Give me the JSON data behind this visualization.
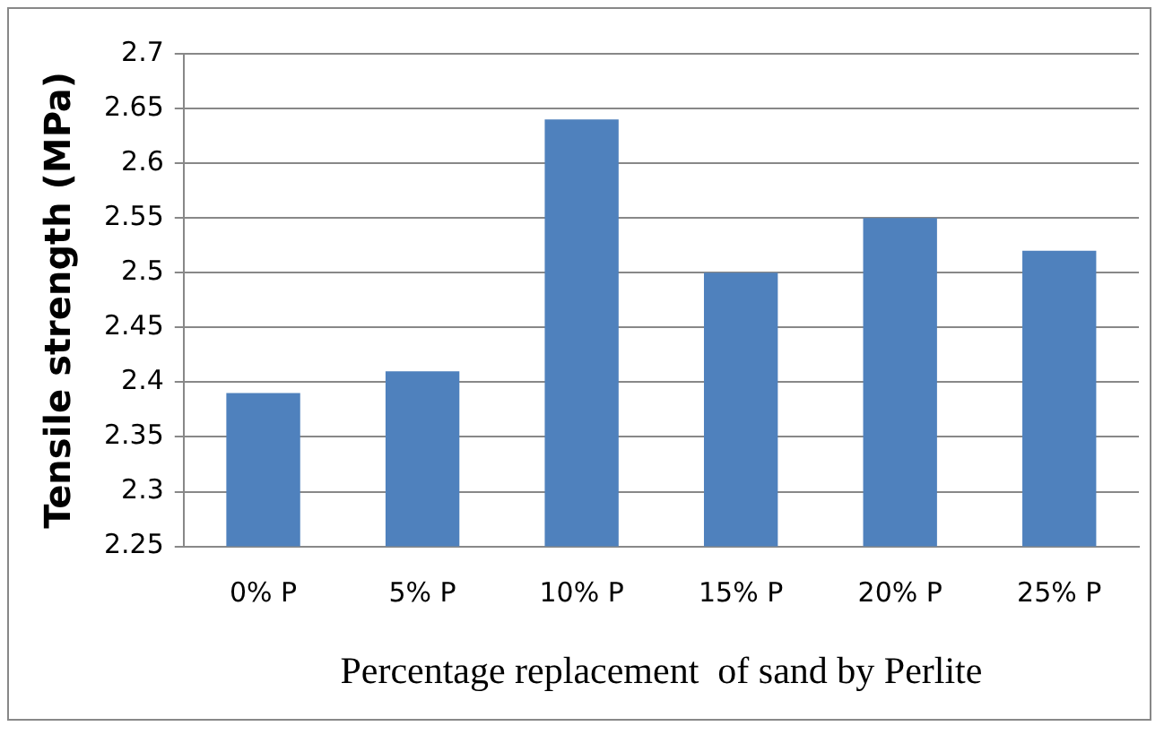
{
  "chart_data": {
    "type": "bar",
    "xlabel": "Percentage replacement  of sand by Perlite",
    "ylabel": "Tensile strength (MPa)",
    "categories": [
      "0% P",
      "5% P",
      "10% P",
      "15% P",
      "20% P",
      "25% P"
    ],
    "values": [
      2.39,
      2.41,
      2.64,
      2.5,
      2.55,
      2.52
    ],
    "color": "#4f81bd",
    "ylim": [
      2.25,
      2.7
    ],
    "yticks": [
      2.25,
      2.3,
      2.35,
      2.4,
      2.45,
      2.5,
      2.55,
      2.6,
      2.65,
      2.7
    ],
    "grid": "y",
    "legend": false
  }
}
